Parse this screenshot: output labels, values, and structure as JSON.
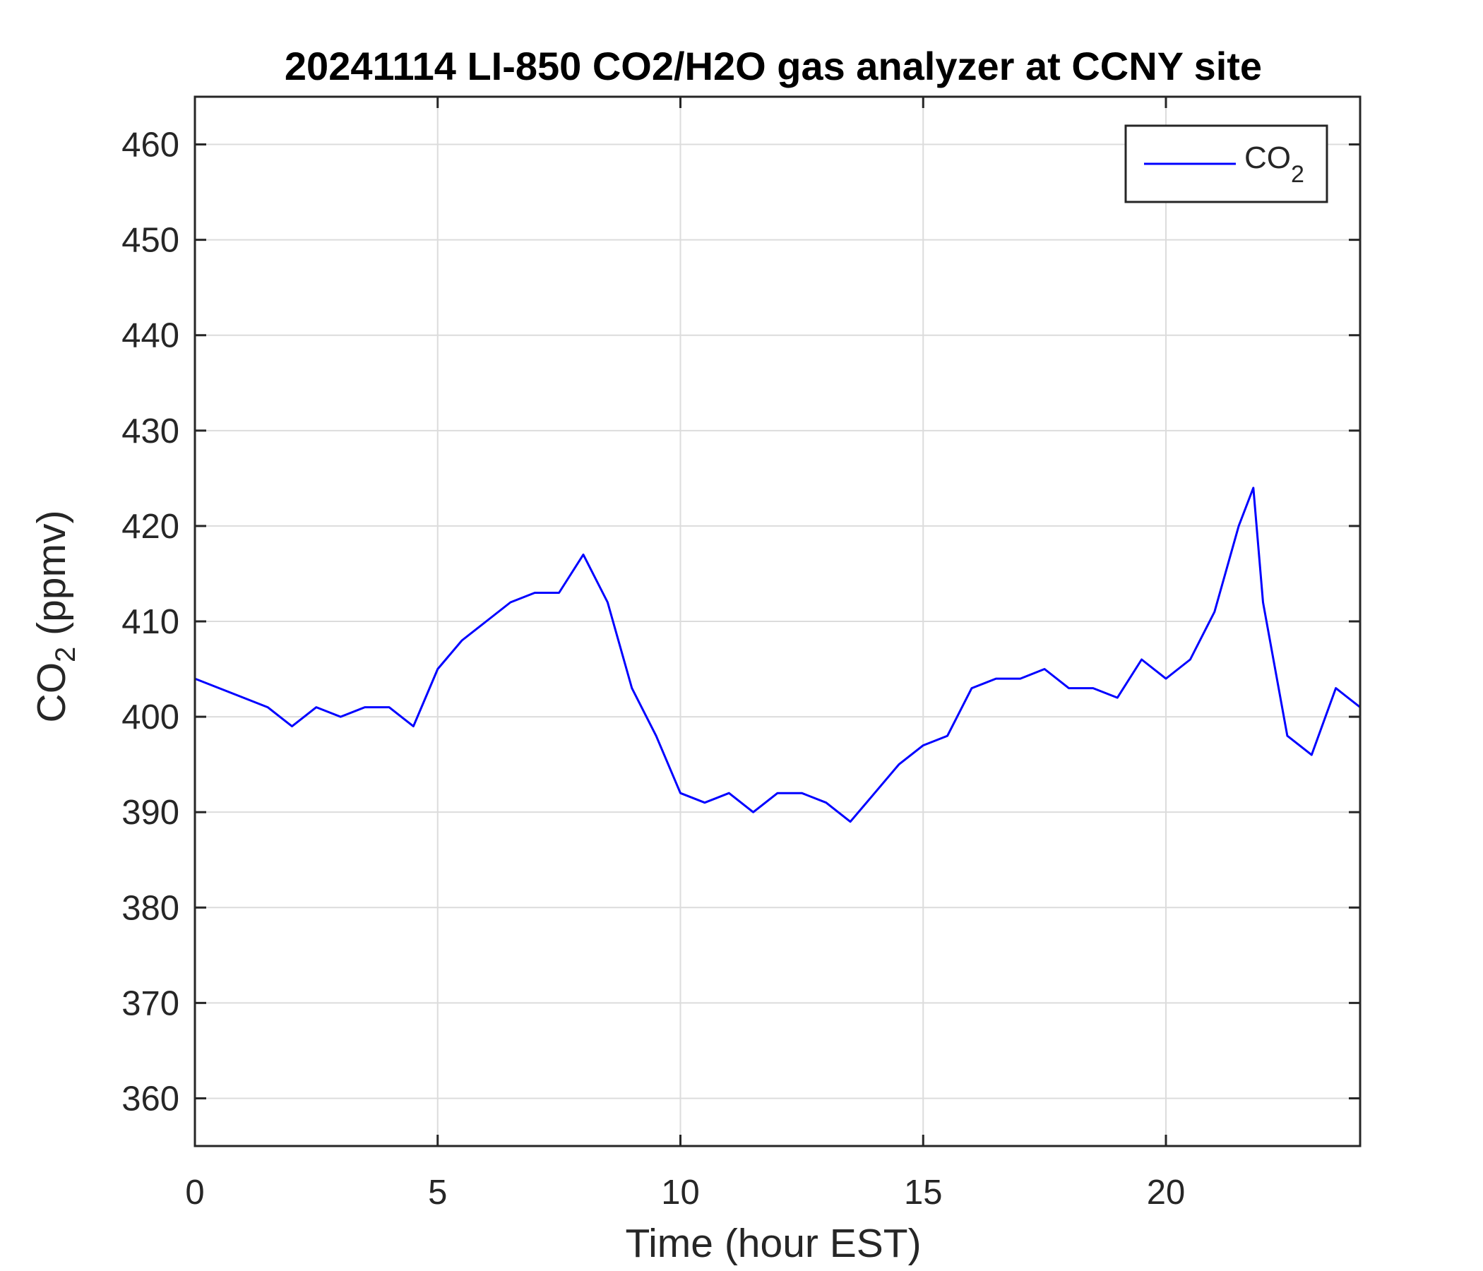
{
  "chart_data": {
    "type": "line",
    "title": "20241114 LI-850 CO2/H2O gas analyzer at CCNY site",
    "xlabel": "Time (hour EST)",
    "ylabel": {
      "base": "CO",
      "sub": "2",
      "rest": " (ppmv)"
    },
    "xlim": [
      0,
      24
    ],
    "ylim": [
      355,
      465
    ],
    "xticks": [
      0,
      5,
      10,
      15,
      20
    ],
    "yticks": [
      360,
      370,
      380,
      390,
      400,
      410,
      420,
      430,
      440,
      450,
      460
    ],
    "grid": true,
    "legend_position": "top-right",
    "colors": {
      "series": "#0000ff",
      "axis": "#262626",
      "grid": "#dcdcdc"
    },
    "series": [
      {
        "name": {
          "base": "CO",
          "sub": "2"
        },
        "x": [
          0,
          0.5,
          1,
          1.5,
          2,
          2.5,
          3,
          3.5,
          4,
          4.5,
          5,
          5.5,
          6,
          6.5,
          7,
          7.5,
          8,
          8.5,
          9,
          9.5,
          10,
          10.5,
          11,
          11.5,
          12,
          12.5,
          13,
          13.5,
          14,
          14.5,
          15,
          15.5,
          16,
          16.5,
          17,
          17.5,
          18,
          18.5,
          19,
          19.5,
          20,
          20.5,
          21,
          21.5,
          21.8,
          22,
          22.5,
          23,
          23.5,
          24
        ],
        "y": [
          404,
          403,
          402,
          401,
          399,
          401,
          400,
          401,
          401,
          399,
          405,
          408,
          410,
          412,
          413,
          413,
          417,
          412,
          403,
          398,
          392,
          391,
          392,
          390,
          392,
          392,
          391,
          389,
          392,
          395,
          397,
          398,
          403,
          404,
          404,
          405,
          403,
          403,
          402,
          406,
          404,
          406,
          411,
          420,
          424,
          412,
          398,
          396,
          403,
          401
        ]
      }
    ]
  }
}
